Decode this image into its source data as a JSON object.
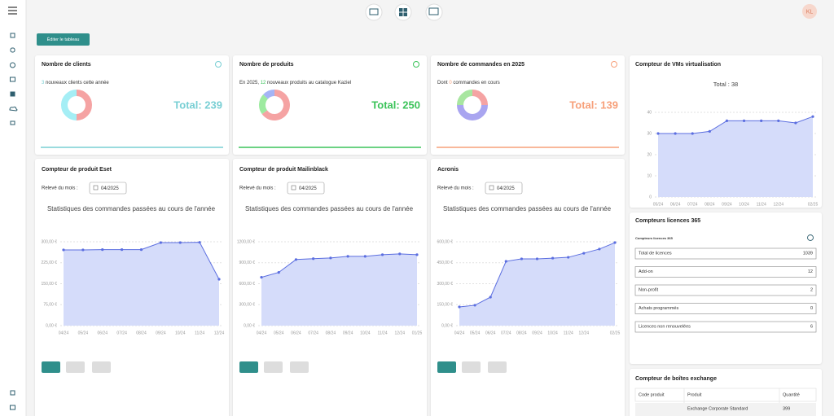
{
  "header": {
    "avatar": "KL",
    "edit_button": "Éditer le tableau"
  },
  "kpi_cards": [
    {
      "title": "Nombre de clients",
      "highlight": "3",
      "after": " nouveaux clients cette année",
      "total": "Total: 239",
      "color": "#79cfd4",
      "donut": {
        "values": [
          50,
          50
        ],
        "colors": [
          "#f5a3a3",
          "#a5eef5"
        ]
      }
    },
    {
      "title": "Nombre de produits",
      "before": "En 2025, ",
      "highlight": "12",
      "after": " nouveaux produits au catalogue Kaziel",
      "total": "Total: 250",
      "color": "#3cc35a",
      "donut": {
        "values": [
          65,
          22,
          13
        ],
        "colors": [
          "#f5a3a3",
          "#9deba0",
          "#a5b4f5"
        ]
      }
    },
    {
      "title": "Nombre de commandes en 2025",
      "before": "Dont ",
      "highlight": "0",
      "after": " commandes en cours",
      "total": "Total: 139",
      "color": "#f7a07a",
      "donut": {
        "values": [
          25,
          50,
          25
        ],
        "colors": [
          "#f5a3a3",
          "#a9a5f0",
          "#a8e6a0"
        ]
      }
    }
  ],
  "line_charts": [
    {
      "title": "Compteur de produit Eset",
      "releve_label": "Relevé du mois :",
      "month": "04/2025",
      "subtitle": "Statistiques des commandes passées au cours de l'année",
      "type": "line",
      "color": "#5b6ee0",
      "categories": [
        "04/24",
        "05/24",
        "06/24",
        "07/24",
        "08/24",
        "09/24",
        "10/24",
        "11/24",
        "12/24"
      ],
      "values": [
        271,
        271,
        272,
        272,
        272,
        297,
        297,
        298,
        166
      ],
      "ylim": [
        0,
        300
      ],
      "yticks": [
        {
          "value": 0,
          "label": "0,00 €"
        },
        {
          "value": 75,
          "label": "75,00 €"
        },
        {
          "value": 150,
          "label": "150,00 €"
        },
        {
          "value": 225,
          "label": "225,00 €"
        },
        {
          "value": 300,
          "label": "300,00 €"
        }
      ]
    },
    {
      "title": "Compteur de produit Mailinblack",
      "releve_label": "Relevé du mois :",
      "month": "04/2025",
      "subtitle": "Statistiques des commandes passées au cours de l'année",
      "type": "line",
      "color": "#5b6ee0",
      "categories": [
        "04/24",
        "05/24",
        "06/24",
        "07/24",
        "08/24",
        "09/24",
        "10/24",
        "11/24",
        "12/24",
        "01/25"
      ],
      "values": [
        692,
        762,
        946,
        958,
        969,
        992,
        992,
        1015,
        1027,
        1015
      ],
      "ylim": [
        0,
        1200
      ],
      "yticks": [
        {
          "value": 0,
          "label": "0,00 €"
        },
        {
          "value": 300,
          "label": "300,00 €"
        },
        {
          "value": 600,
          "label": "600,00 €"
        },
        {
          "value": 900,
          "label": "900,00 €"
        },
        {
          "value": 1200,
          "label": "1200,00 €"
        }
      ]
    },
    {
      "title": "Acronis",
      "releve_label": "Relevé du mois :",
      "month": "04/2025",
      "subtitle": "Statistiques des commandes passées au cours de l'année",
      "type": "line",
      "color": "#5b6ee0",
      "categories": [
        "04/24",
        "05/24",
        "06/24",
        "07/24",
        "08/24",
        "09/24",
        "10/24",
        "11/24",
        "12/24",
        null,
        "02/25"
      ],
      "values": [
        134,
        146,
        204,
        460,
        478,
        478,
        483,
        489,
        518,
        548,
        594
      ],
      "ylim": [
        0,
        600
      ],
      "yticks": [
        {
          "value": 0,
          "label": "0,00 €"
        },
        {
          "value": 150,
          "label": "150,00 €"
        },
        {
          "value": 300,
          "label": "300,00 €"
        },
        {
          "value": 450,
          "label": "450,00 €"
        },
        {
          "value": 600,
          "label": "600,00 €"
        }
      ]
    }
  ],
  "vm_chart": {
    "title": "Compteur de VMs virtualisation",
    "total": "Total : 38",
    "type": "line",
    "color": "#5b6ee0",
    "categories": [
      "05/24",
      "06/24",
      "07/24",
      "08/24",
      "09/24",
      "10/24",
      "11/24",
      "12/24",
      null,
      "02/25"
    ],
    "values": [
      30,
      30,
      30,
      31,
      36,
      36,
      36,
      36,
      35,
      38
    ],
    "ylim": [
      0,
      40
    ],
    "yticks": [
      0,
      10,
      20,
      30,
      40
    ]
  },
  "licences": {
    "title": "Compteurs licences 365",
    "subtitle": "Compteurs licences 365",
    "rows": [
      [
        "Total de licences",
        1039
      ],
      [
        "Add-on",
        12
      ],
      [
        "Non-profit",
        2
      ],
      [
        "Achats programmés",
        0
      ],
      [
        "Licences non renouvelées",
        6
      ]
    ]
  },
  "exchange": {
    "title": "Compteur de boîtes exchange",
    "headers": [
      "Code produit",
      "Produit",
      "Quantité"
    ],
    "rows": [
      {
        "product": "Exchange Corporate Standard",
        "quantity": 399
      }
    ]
  }
}
